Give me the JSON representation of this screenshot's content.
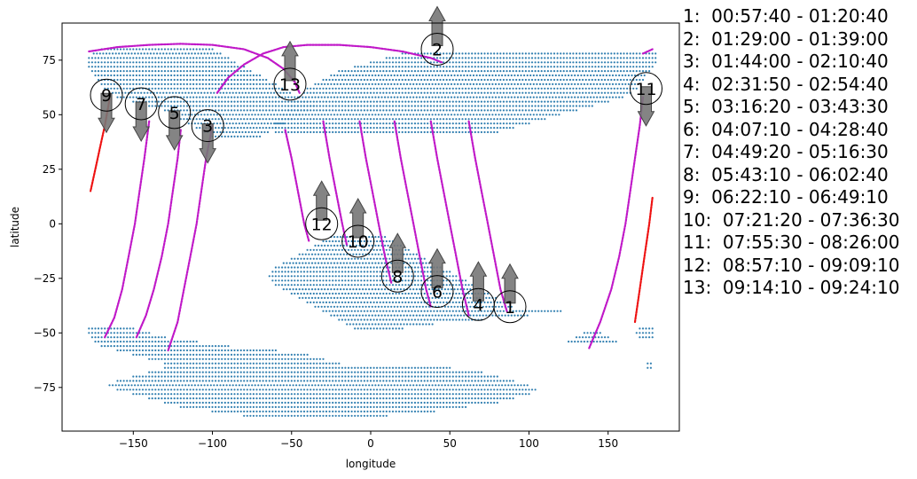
{
  "chart_data": {
    "type": "scatter",
    "title": "",
    "xlabel": "longitude",
    "ylabel": "latitude",
    "xlim": [
      -195,
      195
    ],
    "ylim": [
      -95,
      92
    ],
    "x_ticks": [
      -150,
      -100,
      -50,
      0,
      50,
      100,
      150
    ],
    "y_ticks": [
      -75,
      -50,
      -25,
      0,
      25,
      50,
      75
    ],
    "grid": false,
    "legend_placement": "right-outside",
    "colors": {
      "land": "#2f7eb0",
      "track": "#c018c8",
      "track_highlight": "#ee1111",
      "arrow": "#777777"
    },
    "land_regions": [
      {
        "name": "north",
        "bands": [
          [
            80,
            -170,
            -100
          ],
          [
            78,
            -175,
            -95
          ],
          [
            76,
            -178,
            -90
          ],
          [
            74,
            -178,
            -85
          ],
          [
            72,
            -178,
            -80
          ],
          [
            70,
            -176,
            -75
          ],
          [
            68,
            -174,
            -70
          ],
          [
            66,
            -172,
            -65
          ],
          [
            64,
            -170,
            -60
          ],
          [
            62,
            -168,
            -55
          ],
          [
            60,
            -165,
            -50
          ],
          [
            58,
            -160,
            -45
          ],
          [
            56,
            -150,
            -40
          ],
          [
            54,
            -140,
            -35
          ],
          [
            52,
            -130,
            -40
          ],
          [
            50,
            -125,
            -45
          ],
          [
            48,
            -120,
            -50
          ],
          [
            46,
            -115,
            -55
          ],
          [
            44,
            -110,
            -60
          ],
          [
            42,
            -105,
            -65
          ],
          [
            40,
            -100,
            -70
          ],
          [
            78,
            20,
            180
          ],
          [
            76,
            10,
            180
          ],
          [
            74,
            0,
            180
          ],
          [
            72,
            -10,
            178
          ],
          [
            70,
            -20,
            176
          ],
          [
            68,
            -25,
            174
          ],
          [
            66,
            -30,
            172
          ],
          [
            64,
            -35,
            170
          ],
          [
            62,
            -40,
            168
          ],
          [
            60,
            -42,
            165
          ],
          [
            58,
            -45,
            160
          ],
          [
            56,
            -48,
            150
          ],
          [
            54,
            -50,
            140
          ],
          [
            52,
            -52,
            130
          ],
          [
            50,
            -55,
            120
          ],
          [
            48,
            -58,
            110
          ],
          [
            46,
            -60,
            100
          ],
          [
            44,
            -60,
            90
          ],
          [
            42,
            -60,
            80
          ]
        ]
      },
      {
        "name": "south",
        "bands": [
          [
            -6,
            -25,
            10
          ],
          [
            -8,
            -30,
            15
          ],
          [
            -10,
            -35,
            20
          ],
          [
            -12,
            -40,
            25
          ],
          [
            -14,
            -45,
            30
          ],
          [
            -16,
            -50,
            35
          ],
          [
            -18,
            -55,
            40
          ],
          [
            -20,
            -60,
            45
          ],
          [
            -22,
            -62,
            50
          ],
          [
            -24,
            -64,
            55
          ],
          [
            -26,
            -62,
            60
          ],
          [
            -28,
            -60,
            65
          ],
          [
            -30,
            -55,
            70
          ],
          [
            -32,
            -50,
            75
          ],
          [
            -34,
            -45,
            80
          ],
          [
            -36,
            -40,
            85
          ],
          [
            -38,
            -35,
            90
          ],
          [
            -40,
            -30,
            120
          ],
          [
            -42,
            -25,
            100
          ],
          [
            -44,
            -20,
            70
          ],
          [
            -46,
            -15,
            40
          ],
          [
            -48,
            -10,
            20
          ],
          [
            -48,
            -178,
            -150
          ],
          [
            -50,
            -178,
            -140
          ],
          [
            -52,
            -176,
            -130
          ],
          [
            -54,
            -174,
            -110
          ],
          [
            -56,
            -170,
            -90
          ],
          [
            -58,
            -160,
            -60
          ],
          [
            -60,
            -150,
            -40
          ],
          [
            -62,
            -140,
            -30
          ],
          [
            -64,
            -130,
            -20
          ],
          [
            -66,
            -130,
            50
          ],
          [
            -68,
            -140,
            70
          ],
          [
            -70,
            -150,
            80
          ],
          [
            -72,
            -160,
            90
          ],
          [
            -74,
            -165,
            100
          ],
          [
            -76,
            -160,
            105
          ],
          [
            -78,
            -150,
            100
          ],
          [
            -80,
            -140,
            90
          ],
          [
            -82,
            -130,
            80
          ],
          [
            -84,
            -120,
            60
          ],
          [
            -86,
            -100,
            40
          ],
          [
            -88,
            -80,
            10
          ],
          [
            -50,
            135,
            145
          ],
          [
            -52,
            130,
            150
          ],
          [
            -54,
            125,
            155
          ],
          [
            -48,
            170,
            178
          ],
          [
            -50,
            168,
            178
          ],
          [
            -52,
            170,
            178
          ],
          [
            -64,
            175,
            178
          ],
          [
            -66,
            175,
            178
          ]
        ]
      }
    ],
    "tracks": [
      {
        "id": "pass-1",
        "color": "#c018c8",
        "points": [
          [
            -120,
            43
          ],
          [
            -122,
            30
          ],
          [
            -125,
            15
          ],
          [
            -128,
            0
          ],
          [
            -132,
            -15
          ],
          [
            -137,
            -30
          ],
          [
            -142,
            -42
          ],
          [
            -148,
            -52
          ]
        ]
      },
      {
        "id": "pass-2",
        "color": "#c018c8",
        "points": [
          [
            -100,
            45
          ],
          [
            -104,
            30
          ],
          [
            -107,
            15
          ],
          [
            -110,
            0
          ],
          [
            -114,
            -15
          ],
          [
            -118,
            -30
          ],
          [
            -122,
            -45
          ],
          [
            -128,
            -58
          ]
        ]
      },
      {
        "id": "pass-3",
        "color": "#c018c8",
        "points": [
          [
            -140,
            47
          ],
          [
            -143,
            30
          ],
          [
            -146,
            15
          ],
          [
            -149,
            0
          ],
          [
            -153,
            -15
          ],
          [
            -157,
            -30
          ],
          [
            -162,
            -43
          ],
          [
            -168,
            -52
          ]
        ]
      },
      {
        "id": "pass-4",
        "color": "#c018c8",
        "points": [
          [
            -54,
            43
          ],
          [
            -50,
            30
          ],
          [
            -46,
            15
          ],
          [
            -42,
            0
          ],
          [
            -39,
            -8
          ]
        ]
      },
      {
        "id": "pass-5",
        "color": "#c018c8",
        "points": [
          [
            -30,
            47
          ],
          [
            -26,
            30
          ],
          [
            -22,
            15
          ],
          [
            -18,
            0
          ],
          [
            -15,
            -10
          ]
        ]
      },
      {
        "id": "pass-6",
        "color": "#c018c8",
        "points": [
          [
            -7,
            47
          ],
          [
            -3,
            30
          ],
          [
            1,
            15
          ],
          [
            5,
            0
          ],
          [
            9,
            -15
          ],
          [
            13,
            -27
          ]
        ]
      },
      {
        "id": "pass-7",
        "color": "#c018c8",
        "points": [
          [
            15,
            47
          ],
          [
            19,
            30
          ],
          [
            23,
            15
          ],
          [
            27,
            0
          ],
          [
            31,
            -15
          ],
          [
            35,
            -30
          ],
          [
            38,
            -38
          ]
        ]
      },
      {
        "id": "pass-8",
        "color": "#c018c8",
        "points": [
          [
            38,
            47
          ],
          [
            42,
            30
          ],
          [
            46,
            15
          ],
          [
            50,
            0
          ],
          [
            54,
            -15
          ],
          [
            58,
            -30
          ],
          [
            62,
            -42
          ]
        ]
      },
      {
        "id": "pass-9",
        "color": "#c018c8",
        "points": [
          [
            62,
            47
          ],
          [
            66,
            30
          ],
          [
            70,
            15
          ],
          [
            74,
            0
          ],
          [
            78,
            -15
          ],
          [
            82,
            -30
          ],
          [
            86,
            -40
          ]
        ]
      },
      {
        "id": "pass-10",
        "color": "#c018c8",
        "points": [
          [
            138,
            -57
          ],
          [
            145,
            -45
          ],
          [
            152,
            -30
          ],
          [
            157,
            -15
          ],
          [
            161,
            0
          ],
          [
            164,
            15
          ],
          [
            167,
            30
          ],
          [
            170,
            45
          ],
          [
            172,
            58
          ]
        ]
      },
      {
        "id": "pass-11",
        "color": "#c018c8",
        "points": [
          [
            -97,
            60
          ],
          [
            -90,
            67
          ],
          [
            -80,
            73
          ],
          [
            -68,
            78
          ],
          [
            -55,
            81
          ],
          [
            -40,
            82
          ],
          [
            -20,
            82
          ],
          [
            0,
            81
          ],
          [
            20,
            79
          ],
          [
            38,
            76
          ],
          [
            45,
            74
          ]
        ]
      },
      {
        "id": "pass-12",
        "color": "#c018c8",
        "points": [
          [
            -178,
            79
          ],
          [
            -160,
            81
          ],
          [
            -140,
            82
          ],
          [
            -120,
            82.5
          ],
          [
            -100,
            82
          ],
          [
            -80,
            80
          ],
          [
            -65,
            76
          ],
          [
            -55,
            71
          ],
          [
            -48,
            65
          ],
          [
            -45,
            60
          ]
        ]
      },
      {
        "id": "pass-13",
        "color": "#c018c8",
        "points": [
          [
            172,
            78
          ],
          [
            178,
            80
          ]
        ]
      },
      {
        "id": "pass-red-left",
        "color": "#ee1111",
        "points": [
          [
            -165,
            57
          ],
          [
            -168,
            45
          ],
          [
            -171,
            35
          ],
          [
            -174,
            25
          ],
          [
            -177,
            15
          ]
        ]
      },
      {
        "id": "pass-red-right",
        "color": "#ee1111",
        "points": [
          [
            167,
            -45
          ],
          [
            170,
            -30
          ],
          [
            173,
            -15
          ],
          [
            176,
            0
          ],
          [
            178,
            12
          ]
        ]
      }
    ],
    "markers": [
      {
        "label": "1",
        "x": 88,
        "y": -38,
        "arrow": "up"
      },
      {
        "label": "2",
        "x": 42,
        "y": 80,
        "arrow": "up"
      },
      {
        "label": "3",
        "x": -103,
        "y": 45,
        "arrow": "down"
      },
      {
        "label": "4",
        "x": 68,
        "y": -37,
        "arrow": "up"
      },
      {
        "label": "5",
        "x": -124,
        "y": 51,
        "arrow": "down"
      },
      {
        "label": "6",
        "x": 42,
        "y": -31,
        "arrow": "up"
      },
      {
        "label": "7",
        "x": -145,
        "y": 55,
        "arrow": "down"
      },
      {
        "label": "8",
        "x": 17,
        "y": -24,
        "arrow": "up"
      },
      {
        "label": "9",
        "x": -167,
        "y": 59,
        "arrow": "down"
      },
      {
        "label": "10",
        "x": -8,
        "y": -8,
        "arrow": "up"
      },
      {
        "label": "11",
        "x": 174,
        "y": 62,
        "arrow": "down"
      },
      {
        "label": "12",
        "x": -31,
        "y": 0,
        "arrow": "up"
      },
      {
        "label": "13",
        "x": -51,
        "y": 64,
        "arrow": "up"
      }
    ],
    "legend_entries": [
      "1:  00:57:40 - 01:20:40",
      "2:  01:29:00 - 01:39:00",
      "3:  01:44:00 - 02:10:40",
      "4:  02:31:50 - 02:54:40",
      "5:  03:16:20 - 03:43:30",
      "6:  04:07:10 - 04:28:40",
      "7:  04:49:20 - 05:16:30",
      "8:  05:43:10 - 06:02:40",
      "9:  06:22:10 - 06:49:10",
      "10:  07:21:20 - 07:36:30",
      "11:  07:55:30 - 08:26:00",
      "12:  08:57:10 - 09:09:10",
      "13:  09:14:10 - 09:24:10"
    ]
  }
}
